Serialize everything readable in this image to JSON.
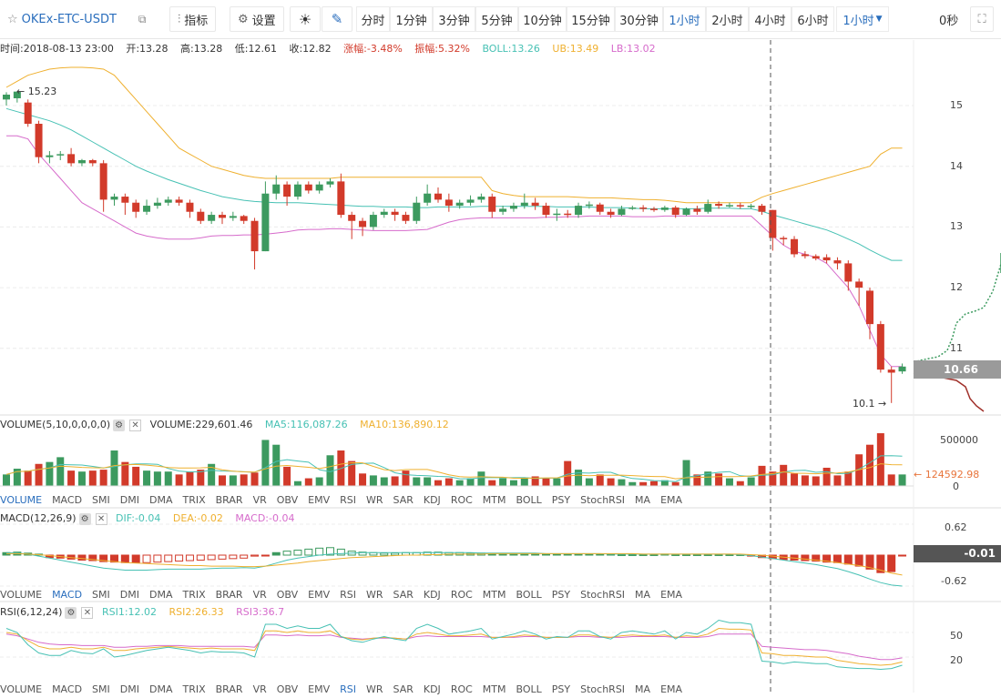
{
  "toolbar": {
    "symbol": "OKEx-ETC-USDT",
    "indicators_label": "指标",
    "settings_label": "设置",
    "periods": [
      "分时",
      "1分钟",
      "3分钟",
      "5分钟",
      "10分钟",
      "15分钟",
      "30分钟",
      "1小时",
      "2小时",
      "4小时",
      "6小时"
    ],
    "active_period": "1小时",
    "dropdown_label": "1小时",
    "timer": "0秒"
  },
  "info": {
    "time": "时间:2018-08-13 23:00",
    "open": "开:13.28",
    "high": "高:13.28",
    "low": "低:12.61",
    "close": "收:12.82",
    "change": "涨幅:-3.48%",
    "amplitude": "振幅:5.32%",
    "boll": "BOLL:13.26",
    "ub": "UB:13.49",
    "lb": "LB:13.02"
  },
  "colors": {
    "up": "#3c9a5f",
    "down": "#d23a2a",
    "ma5": "#47c1b4",
    "ma10": "#efb02f",
    "lb": "#d66bcb",
    "accent": "#2a6ebd"
  },
  "main_chart": {
    "y_ticks": [
      "15",
      "14",
      "13",
      "12",
      "11"
    ],
    "current_price": "10.66",
    "max_label": "← 15.23",
    "min_label": "10.1 →",
    "candles": [
      [
        15.1,
        15.18,
        15.22,
        15.0
      ],
      [
        15.12,
        15.23,
        15.23,
        15.05
      ],
      [
        15.05,
        14.7,
        15.1,
        14.65
      ],
      [
        14.7,
        14.15,
        14.75,
        14.05
      ],
      [
        14.15,
        14.18,
        14.25,
        14.05
      ],
      [
        14.18,
        14.2,
        14.25,
        14.1
      ],
      [
        14.2,
        14.05,
        14.3,
        14.0
      ],
      [
        14.05,
        14.1,
        14.12,
        14.0
      ],
      [
        14.1,
        14.05,
        14.12,
        14.0
      ],
      [
        14.05,
        13.45,
        14.1,
        13.25
      ],
      [
        13.45,
        13.5,
        13.55,
        13.35
      ],
      [
        13.5,
        13.4,
        13.55,
        13.2
      ],
      [
        13.4,
        13.25,
        13.45,
        13.15
      ],
      [
        13.25,
        13.35,
        13.45,
        13.2
      ],
      [
        13.35,
        13.4,
        13.48,
        13.3
      ],
      [
        13.4,
        13.45,
        13.5,
        13.35
      ],
      [
        13.45,
        13.4,
        13.5,
        13.35
      ],
      [
        13.4,
        13.25,
        13.45,
        13.15
      ],
      [
        13.25,
        13.1,
        13.3,
        13.05
      ],
      [
        13.1,
        13.2,
        13.25,
        13.05
      ],
      [
        13.2,
        13.15,
        13.25,
        13.05
      ],
      [
        13.15,
        13.18,
        13.25,
        13.1
      ],
      [
        13.18,
        13.1,
        13.2,
        13.05
      ],
      [
        13.1,
        12.6,
        13.15,
        12.3
      ],
      [
        12.6,
        13.55,
        13.75,
        12.6
      ],
      [
        13.55,
        13.7,
        13.85,
        13.45
      ],
      [
        13.7,
        13.5,
        13.75,
        13.35
      ],
      [
        13.5,
        13.7,
        13.75,
        13.45
      ],
      [
        13.7,
        13.6,
        13.75,
        13.55
      ],
      [
        13.6,
        13.7,
        13.75,
        13.55
      ],
      [
        13.7,
        13.75,
        13.8,
        13.65
      ],
      [
        13.75,
        13.2,
        13.88,
        13.15
      ],
      [
        13.2,
        13.1,
        13.25,
        12.8
      ],
      [
        13.1,
        13.0,
        13.15,
        12.85
      ],
      [
        13.0,
        13.2,
        13.25,
        12.95
      ],
      [
        13.2,
        13.25,
        13.3,
        13.15
      ],
      [
        13.25,
        13.2,
        13.3,
        13.1
      ],
      [
        13.2,
        13.1,
        13.25,
        13.05
      ],
      [
        13.1,
        13.4,
        13.5,
        13.05
      ],
      [
        13.4,
        13.55,
        13.7,
        13.35
      ],
      [
        13.55,
        13.45,
        13.65,
        13.4
      ],
      [
        13.45,
        13.35,
        13.55,
        13.25
      ],
      [
        13.35,
        13.4,
        13.45,
        13.3
      ],
      [
        13.4,
        13.45,
        13.52,
        13.35
      ],
      [
        13.45,
        13.5,
        13.55,
        13.4
      ],
      [
        13.5,
        13.25,
        13.55,
        13.15
      ],
      [
        13.25,
        13.3,
        13.35,
        13.2
      ],
      [
        13.3,
        13.35,
        13.4,
        13.25
      ],
      [
        13.35,
        13.4,
        13.55,
        13.3
      ],
      [
        13.4,
        13.35,
        13.48,
        13.28
      ],
      [
        13.35,
        13.2,
        13.4,
        13.15
      ],
      [
        13.2,
        13.22,
        13.3,
        13.1
      ],
      [
        13.22,
        13.2,
        13.28,
        13.15
      ],
      [
        13.2,
        13.35,
        13.4,
        13.15
      ],
      [
        13.35,
        13.37,
        13.42,
        13.3
      ],
      [
        13.37,
        13.25,
        13.4,
        13.2
      ],
      [
        13.25,
        13.2,
        13.3,
        13.15
      ],
      [
        13.2,
        13.3,
        13.35,
        13.18
      ],
      [
        13.3,
        13.32,
        13.35,
        13.28
      ],
      [
        13.32,
        13.3,
        13.36,
        13.25
      ],
      [
        13.3,
        13.28,
        13.33,
        13.25
      ],
      [
        13.28,
        13.32,
        13.35,
        13.25
      ],
      [
        13.32,
        13.2,
        13.35,
        13.15
      ],
      [
        13.2,
        13.3,
        13.32,
        13.18
      ],
      [
        13.3,
        13.25,
        13.35,
        13.2
      ],
      [
        13.25,
        13.38,
        13.45,
        13.22
      ],
      [
        13.38,
        13.35,
        13.42,
        13.3
      ],
      [
        13.35,
        13.36,
        13.4,
        13.32
      ],
      [
        13.36,
        13.34,
        13.4,
        13.3
      ],
      [
        13.34,
        13.35,
        13.38,
        13.3
      ],
      [
        13.35,
        13.25,
        13.38,
        13.2
      ],
      [
        13.28,
        12.82,
        13.28,
        12.61
      ],
      [
        12.82,
        12.8,
        12.85,
        12.7
      ],
      [
        12.8,
        12.55,
        12.85,
        12.5
      ],
      [
        12.55,
        12.52,
        12.6,
        12.48
      ],
      [
        12.52,
        12.48,
        12.55,
        12.45
      ],
      [
        12.5,
        12.45,
        12.55,
        12.4
      ],
      [
        12.45,
        12.4,
        12.5,
        12.3
      ],
      [
        12.4,
        12.1,
        12.45,
        11.95
      ],
      [
        12.1,
        12.0,
        12.15,
        11.7
      ],
      [
        11.95,
        11.4,
        12.0,
        11.15
      ],
      [
        11.4,
        10.65,
        11.45,
        10.6
      ],
      [
        10.65,
        10.6,
        10.7,
        10.1
      ],
      [
        10.62,
        10.7,
        10.75,
        10.58
      ]
    ],
    "boll_mid": [
      14.95,
      14.9,
      14.85,
      14.8,
      14.75,
      14.68,
      14.6,
      14.5,
      14.4,
      14.3,
      14.2,
      14.1,
      14.0,
      13.92,
      13.85,
      13.78,
      13.72,
      13.66,
      13.6,
      13.55,
      13.5,
      13.47,
      13.44,
      13.42,
      13.41,
      13.4,
      13.4,
      13.4,
      13.39,
      13.38,
      13.37,
      13.36,
      13.35,
      13.34,
      13.34,
      13.33,
      13.33,
      13.33,
      13.32,
      13.32,
      13.33,
      13.33,
      13.33,
      13.33,
      13.34,
      13.34,
      13.34,
      13.34,
      13.34,
      13.34,
      13.34,
      13.33,
      13.33,
      13.33,
      13.33,
      13.32,
      13.32,
      13.32,
      13.31,
      13.3,
      13.3,
      13.3,
      13.3,
      13.3,
      13.3,
      13.31,
      13.31,
      13.31,
      13.3,
      13.3,
      13.26,
      13.2,
      13.15,
      13.1,
      13.05,
      13.0,
      12.95,
      12.88,
      12.8,
      12.72,
      12.62,
      12.53,
      12.45,
      12.45
    ],
    "boll_ub": [
      15.3,
      15.4,
      15.5,
      15.55,
      15.6,
      15.62,
      15.63,
      15.63,
      15.62,
      15.6,
      15.5,
      15.3,
      15.1,
      14.9,
      14.7,
      14.5,
      14.3,
      14.2,
      14.1,
      14.0,
      13.95,
      13.9,
      13.85,
      13.82,
      13.8,
      13.8,
      13.8,
      13.8,
      13.8,
      13.8,
      13.8,
      13.82,
      13.82,
      13.82,
      13.82,
      13.82,
      13.82,
      13.82,
      13.82,
      13.82,
      13.82,
      13.82,
      13.82,
      13.82,
      13.82,
      13.6,
      13.55,
      13.52,
      13.5,
      13.5,
      13.5,
      13.5,
      13.5,
      13.49,
      13.48,
      13.48,
      13.48,
      13.47,
      13.46,
      13.45,
      13.45,
      13.44,
      13.42,
      13.4,
      13.4,
      13.4,
      13.4,
      13.4,
      13.4,
      13.4,
      13.49,
      13.55,
      13.6,
      13.65,
      13.7,
      13.75,
      13.8,
      13.85,
      13.9,
      13.95,
      14.0,
      14.2,
      14.3,
      14.3
    ],
    "boll_lb": [
      14.5,
      14.5,
      14.45,
      14.2,
      14.0,
      13.8,
      13.6,
      13.4,
      13.3,
      13.2,
      13.1,
      13.0,
      12.9,
      12.85,
      12.82,
      12.8,
      12.8,
      12.8,
      12.82,
      12.85,
      12.86,
      12.86,
      12.87,
      12.87,
      12.88,
      12.9,
      12.92,
      12.95,
      12.96,
      12.96,
      12.97,
      12.97,
      12.96,
      12.95,
      12.94,
      12.94,
      12.94,
      12.94,
      12.95,
      12.96,
      13.02,
      13.08,
      13.12,
      13.14,
      13.15,
      13.15,
      13.15,
      13.15,
      13.15,
      13.15,
      13.16,
      13.16,
      13.17,
      13.17,
      13.18,
      13.18,
      13.18,
      13.18,
      13.17,
      13.17,
      13.17,
      13.18,
      13.18,
      13.18,
      13.18,
      13.18,
      13.18,
      13.18,
      13.18,
      13.18,
      13.02,
      12.85,
      12.7,
      12.6,
      12.55,
      12.5,
      12.4,
      12.2,
      12.0,
      11.7,
      11.3,
      10.9,
      10.7,
      10.7
    ]
  },
  "volume": {
    "header": "VOLUME(5,10,0,0,0,0)",
    "value": "VOLUME:229,601.46",
    "ma5": "MA5:116,087.26",
    "ma10": "MA10:136,890.12",
    "ticks": [
      "500000",
      "0"
    ],
    "marker": "← 124592.98",
    "bars": [
      120000,
      180000,
      160000,
      230000,
      250000,
      300000,
      160000,
      150000,
      160000,
      170000,
      370000,
      250000,
      200000,
      160000,
      150000,
      150000,
      120000,
      150000,
      170000,
      230000,
      110000,
      110000,
      120000,
      140000,
      480000,
      430000,
      200000,
      50000,
      80000,
      90000,
      320000,
      370000,
      260000,
      130000,
      110000,
      90000,
      100000,
      160000,
      90000,
      90000,
      60000,
      80000,
      60000,
      80000,
      150000,
      60000,
      80000,
      60000,
      90000,
      100000,
      80000,
      80000,
      260000,
      170000,
      80000,
      120000,
      80000,
      70000,
      40000,
      40000,
      50000,
      60000,
      40000,
      270000,
      120000,
      150000,
      130000,
      80000,
      50000,
      90000,
      210000,
      150000,
      220000,
      130000,
      110000,
      100000,
      190000,
      110000,
      150000,
      330000,
      430000,
      550000,
      120000,
      120000
    ]
  },
  "tabs_vol": [
    "VOLUME",
    "MACD",
    "SMI",
    "DMI",
    "DMA",
    "TRIX",
    "BRAR",
    "VR",
    "OBV",
    "EMV",
    "RSI",
    "WR",
    "SAR",
    "KDJ",
    "ROC",
    "MTM",
    "BOLL",
    "PSY",
    "StochRSI",
    "MA",
    "EMA"
  ],
  "tabs_vol_active": "VOLUME",
  "macd": {
    "header": "MACD(12,26,9)",
    "dif": "DIF:-0.04",
    "dea": "DEA:-0.02",
    "macd": "MACD:-0.04",
    "ticks": [
      "0.62",
      "-0.62"
    ],
    "current": "-0.01",
    "hist": [
      0.05,
      0.06,
      0.04,
      0.02,
      -0.05,
      -0.06,
      -0.08,
      -0.1,
      -0.11,
      -0.13,
      -0.14,
      -0.15,
      -0.15,
      -0.15,
      -0.14,
      -0.13,
      -0.12,
      -0.11,
      -0.1,
      -0.09,
      -0.08,
      -0.07,
      -0.06,
      -0.02,
      -0.01,
      0.05,
      0.08,
      0.1,
      0.12,
      0.14,
      0.15,
      0.12,
      0.08,
      0.06,
      0.05,
      0.04,
      0.04,
      0.05,
      0.05,
      0.06,
      0.06,
      0.05,
      0.05,
      0.04,
      0.04,
      0.03,
      0.03,
      0.03,
      0.03,
      0.03,
      0.02,
      0.02,
      0.02,
      0.02,
      0.02,
      0.02,
      0.02,
      0.01,
      0.01,
      0.01,
      0.01,
      0.02,
      0.01,
      0.01,
      0.01,
      0.01,
      0.01,
      0.01,
      0.01,
      -0.02,
      -0.05,
      -0.07,
      -0.09,
      -0.1,
      -0.11,
      -0.12,
      -0.14,
      -0.15,
      -0.18,
      -0.22,
      -0.28,
      -0.35,
      -0.33,
      -0.01
    ],
    "dif_line": [
      0.05,
      0.04,
      0.02,
      -0.02,
      -0.06,
      -0.1,
      -0.14,
      -0.18,
      -0.22,
      -0.26,
      -0.28,
      -0.3,
      -0.3,
      -0.3,
      -0.29,
      -0.28,
      -0.28,
      -0.28,
      -0.28,
      -0.27,
      -0.26,
      -0.26,
      -0.25,
      -0.26,
      -0.22,
      -0.16,
      -0.1,
      -0.06,
      -0.03,
      0.0,
      0.02,
      0.03,
      0.04,
      0.05,
      0.05,
      0.05,
      0.05,
      0.05,
      0.05,
      0.05,
      0.05,
      0.05,
      0.05,
      0.05,
      0.04,
      0.04,
      0.04,
      0.04,
      0.04,
      0.04,
      0.03,
      0.03,
      0.03,
      0.03,
      0.03,
      0.03,
      0.02,
      0.02,
      0.02,
      0.02,
      0.02,
      0.02,
      0.02,
      0.02,
      0.02,
      0.02,
      0.02,
      0.02,
      0.01,
      -0.01,
      -0.04,
      -0.07,
      -0.1,
      -0.13,
      -0.16,
      -0.19,
      -0.23,
      -0.27,
      -0.33,
      -0.4,
      -0.48,
      -0.55,
      -0.6,
      -0.62
    ],
    "dea_line": [
      0.03,
      0.03,
      0.02,
      0.01,
      -0.01,
      -0.03,
      -0.05,
      -0.07,
      -0.09,
      -0.11,
      -0.13,
      -0.15,
      -0.16,
      -0.17,
      -0.18,
      -0.19,
      -0.2,
      -0.21,
      -0.21,
      -0.22,
      -0.22,
      -0.22,
      -0.23,
      -0.23,
      -0.22,
      -0.2,
      -0.18,
      -0.16,
      -0.13,
      -0.11,
      -0.09,
      -0.07,
      -0.05,
      -0.04,
      -0.03,
      -0.02,
      -0.01,
      0.0,
      0.0,
      0.01,
      0.01,
      0.02,
      0.02,
      0.02,
      0.02,
      0.03,
      0.03,
      0.03,
      0.03,
      0.03,
      0.03,
      0.03,
      0.03,
      0.03,
      0.03,
      0.03,
      0.03,
      0.03,
      0.03,
      0.02,
      0.02,
      0.02,
      0.02,
      0.02,
      0.02,
      0.02,
      0.02,
      0.02,
      0.02,
      0.01,
      0.0,
      -0.02,
      -0.04,
      -0.06,
      -0.08,
      -0.1,
      -0.12,
      -0.15,
      -0.18,
      -0.21,
      -0.25,
      -0.3,
      -0.36,
      -0.4
    ]
  },
  "tabs_macd_active": "MACD",
  "rsi": {
    "header": "RSI(6,12,24)",
    "rsi1": "RSI1:12.02",
    "rsi2": "RSI2:26.33",
    "rsi3": "RSI3:36.7",
    "ticks": [
      "50",
      "20"
    ],
    "rsi1_line": [
      55,
      50,
      35,
      25,
      22,
      22,
      28,
      25,
      24,
      30,
      20,
      22,
      25,
      28,
      30,
      32,
      30,
      28,
      25,
      27,
      26,
      26,
      25,
      20,
      60,
      60,
      55,
      58,
      55,
      55,
      60,
      45,
      40,
      38,
      42,
      45,
      42,
      40,
      55,
      60,
      55,
      48,
      50,
      52,
      55,
      42,
      45,
      48,
      52,
      48,
      42,
      45,
      44,
      52,
      52,
      45,
      42,
      50,
      52,
      50,
      48,
      52,
      42,
      50,
      48,
      55,
      65,
      62,
      62,
      60,
      15,
      14,
      12,
      14,
      13,
      12,
      12,
      8,
      7,
      6,
      6,
      5,
      6,
      10
    ],
    "rsi2_line": [
      50,
      48,
      40,
      33,
      30,
      30,
      32,
      30,
      30,
      32,
      28,
      28,
      30,
      31,
      32,
      33,
      32,
      31,
      30,
      31,
      30,
      30,
      30,
      28,
      52,
      52,
      50,
      52,
      50,
      50,
      52,
      45,
      42,
      41,
      43,
      44,
      43,
      42,
      48,
      50,
      48,
      46,
      46,
      47,
      48,
      44,
      44,
      45,
      47,
      46,
      44,
      44,
      44,
      47,
      47,
      45,
      44,
      46,
      47,
      46,
      46,
      47,
      44,
      46,
      45,
      48,
      55,
      54,
      54,
      53,
      25,
      24,
      22,
      22,
      21,
      20,
      20,
      16,
      14,
      12,
      11,
      10,
      11,
      14
    ],
    "rsi3_line": [
      48,
      46,
      42,
      38,
      36,
      35,
      35,
      34,
      34,
      34,
      32,
      32,
      33,
      33,
      34,
      34,
      34,
      33,
      33,
      33,
      33,
      33,
      33,
      32,
      47,
      47,
      46,
      47,
      46,
      46,
      47,
      44,
      43,
      42,
      43,
      43,
      43,
      42,
      45,
      46,
      45,
      45,
      45,
      45,
      45,
      44,
      44,
      44,
      45,
      45,
      44,
      44,
      44,
      45,
      45,
      44,
      44,
      44,
      45,
      45,
      45,
      45,
      44,
      44,
      44,
      45,
      48,
      48,
      48,
      48,
      33,
      32,
      31,
      30,
      29,
      29,
      28,
      26,
      24,
      21,
      19,
      17,
      17,
      19
    ]
  },
  "tabs_rsi_active": "RSI"
}
